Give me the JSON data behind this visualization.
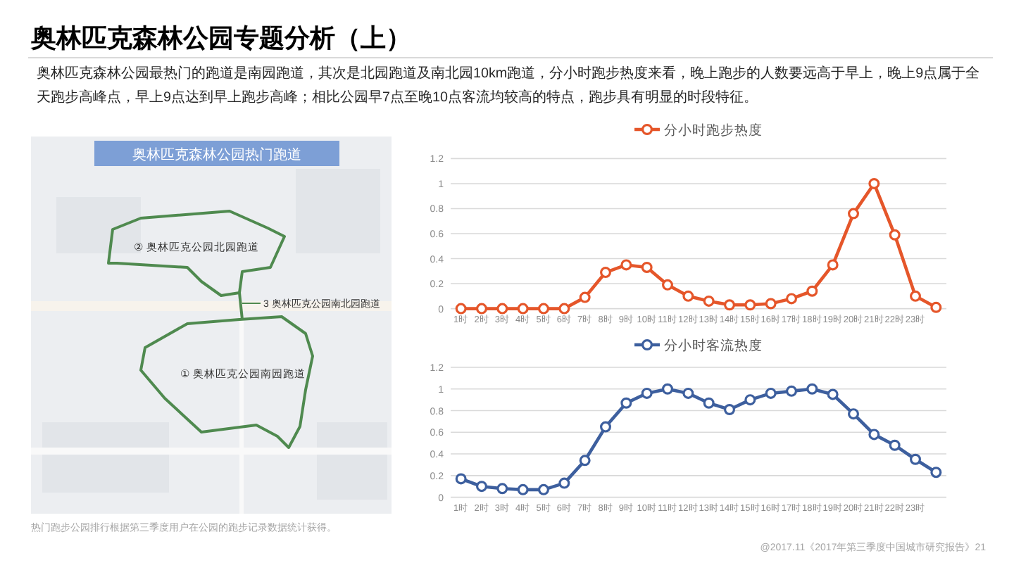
{
  "chart_data": [
    {
      "type": "other",
      "title": "奥林匹克森林公园专题分析（上）",
      "subtitle": "奥林匹克森林公园最热门的跑道是南园跑道，其次是北园跑道及南北园10km跑道，分小时跑步热度来看，晚上跑步的人数要远高于早上，晚上9点属于全天跑步高峰点，早上9点达到早上跑步高峰；相比公园早7点至晚10点客流均较高的特点，跑步具有明显的时段特征。",
      "annotations": [
        "@2017.11《2017年第三季度中国城市研究报告》21"
      ]
    },
    {
      "type": "other",
      "title": "奥林匹克森林公园热门跑道",
      "annotations": [
        "② 奥林匹克公园北园跑道",
        "3 奥林匹克公园南北园跑道",
        "① 奥林匹克公园南园跑道",
        "热门跑步公园排行根据第三季度用户在公园的跑步记录数据统计获得。"
      ]
    },
    {
      "type": "line",
      "categories": [
        "1时",
        "2时",
        "3时",
        "4时",
        "5时",
        "6时",
        "7时",
        "8时",
        "9时",
        "10时",
        "11时",
        "12时",
        "13时",
        "14时",
        "15时",
        "16时",
        "17时",
        "18时",
        "19时",
        "20时",
        "21时",
        "22时",
        "23时",
        null
      ],
      "series": [
        {
          "name": "分小时跑步热度",
          "color": "#e5562a",
          "values": [
            0,
            0,
            0,
            0,
            0,
            0,
            0.09,
            0.29,
            0.35,
            0.33,
            0.19,
            0.1,
            0.06,
            0.03,
            0.03,
            0.04,
            0.08,
            0.14,
            0.35,
            0.76,
            1,
            0.59,
            0.1,
            0.01
          ]
        }
      ],
      "ylim": [
        0,
        1.2
      ],
      "yticks": [
        0,
        0.2,
        0.4,
        0.6,
        0.8,
        1,
        1.2
      ],
      "grid": "y",
      "legend": "top",
      "marker": "circle",
      "line_style": "solid"
    },
    {
      "type": "line",
      "categories": [
        "1时",
        "2时",
        "3时",
        "4时",
        "5时",
        "6时",
        "7时",
        "8时",
        "9时",
        "10时",
        "11时",
        "12时",
        "13时",
        "14时",
        "15时",
        "16时",
        "17时",
        "18时",
        "19时",
        "20时",
        "21时",
        "22时",
        "23时",
        null
      ],
      "series": [
        {
          "name": "分小时客流热度",
          "color": "#3d5f9e",
          "values": [
            0.17,
            0.1,
            0.08,
            0.07,
            0.07,
            0.13,
            0.34,
            0.65,
            0.87,
            0.96,
            1,
            0.96,
            0.87,
            0.81,
            0.9,
            0.96,
            0.98,
            1,
            0.95,
            0.77,
            0.58,
            0.48,
            0.35,
            0.23
          ]
        }
      ],
      "ylim": [
        0,
        1.2
      ],
      "yticks": [
        0,
        0.2,
        0.4,
        0.6,
        0.8,
        1,
        1.2
      ],
      "grid": "y",
      "legend": "top",
      "marker": "circle",
      "line_style": "solid"
    }
  ]
}
